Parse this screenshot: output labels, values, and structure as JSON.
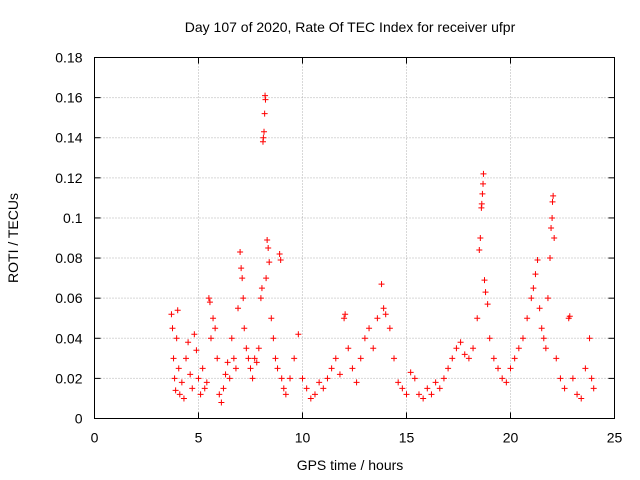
{
  "chart_data": {
    "type": "scatter",
    "title": "Day 107 of 2020, Rate Of TEC Index for receiver ufpr",
    "xlabel": "GPS time / hours",
    "ylabel": "ROTI / TECUs",
    "xlim": [
      0,
      25
    ],
    "ylim": [
      0,
      0.18
    ],
    "xticks": [
      0,
      5,
      10,
      15,
      20,
      25
    ],
    "xtick_labels": [
      "0",
      "5",
      "10",
      "15",
      "20",
      "25"
    ],
    "yticks": [
      0,
      0.02,
      0.04,
      0.06,
      0.08,
      0.1,
      0.12,
      0.14,
      0.16,
      0.18
    ],
    "ytick_labels": [
      "0",
      "0.02",
      "0.04",
      "0.06",
      "0.08",
      "0.1",
      "0.12",
      "0.14",
      "0.16",
      "0.18"
    ],
    "grid": true,
    "marker": "+",
    "marker_color": "#ff0000",
    "series": [
      {
        "name": "ROTI",
        "points": [
          [
            3.7,
            0.052
          ],
          [
            3.75,
            0.045
          ],
          [
            3.8,
            0.03
          ],
          [
            3.85,
            0.02
          ],
          [
            3.9,
            0.014
          ],
          [
            3.95,
            0.04
          ],
          [
            4.0,
            0.054
          ],
          [
            4.05,
            0.025
          ],
          [
            4.1,
            0.012
          ],
          [
            4.2,
            0.018
          ],
          [
            4.3,
            0.01
          ],
          [
            4.4,
            0.03
          ],
          [
            4.5,
            0.038
          ],
          [
            4.6,
            0.022
          ],
          [
            4.7,
            0.015
          ],
          [
            4.8,
            0.042
          ],
          [
            4.9,
            0.034
          ],
          [
            5.0,
            0.02
          ],
          [
            5.1,
            0.012
          ],
          [
            5.2,
            0.025
          ],
          [
            5.3,
            0.015
          ],
          [
            5.4,
            0.018
          ],
          [
            5.5,
            0.06
          ],
          [
            5.55,
            0.058
          ],
          [
            5.6,
            0.04
          ],
          [
            5.7,
            0.05
          ],
          [
            5.8,
            0.045
          ],
          [
            5.9,
            0.03
          ],
          [
            6.0,
            0.012
          ],
          [
            6.1,
            0.008
          ],
          [
            6.2,
            0.015
          ],
          [
            6.3,
            0.022
          ],
          [
            6.4,
            0.028
          ],
          [
            6.5,
            0.02
          ],
          [
            6.6,
            0.04
          ],
          [
            6.7,
            0.03
          ],
          [
            6.8,
            0.025
          ],
          [
            6.9,
            0.055
          ],
          [
            7.0,
            0.083
          ],
          [
            7.05,
            0.075
          ],
          [
            7.1,
            0.07
          ],
          [
            7.15,
            0.06
          ],
          [
            7.2,
            0.045
          ],
          [
            7.3,
            0.035
          ],
          [
            7.4,
            0.03
          ],
          [
            7.5,
            0.025
          ],
          [
            7.6,
            0.02
          ],
          [
            7.7,
            0.03
          ],
          [
            7.8,
            0.028
          ],
          [
            7.9,
            0.035
          ],
          [
            8.0,
            0.06
          ],
          [
            8.05,
            0.065
          ],
          [
            8.1,
            0.138
          ],
          [
            8.12,
            0.14
          ],
          [
            8.15,
            0.143
          ],
          [
            8.18,
            0.152
          ],
          [
            8.2,
            0.161
          ],
          [
            8.22,
            0.159
          ],
          [
            8.25,
            0.07
          ],
          [
            8.3,
            0.089
          ],
          [
            8.35,
            0.085
          ],
          [
            8.4,
            0.078
          ],
          [
            8.5,
            0.05
          ],
          [
            8.6,
            0.04
          ],
          [
            8.7,
            0.03
          ],
          [
            8.8,
            0.025
          ],
          [
            8.9,
            0.082
          ],
          [
            8.95,
            0.079
          ],
          [
            9.0,
            0.02
          ],
          [
            9.1,
            0.015
          ],
          [
            9.2,
            0.012
          ],
          [
            9.4,
            0.02
          ],
          [
            9.6,
            0.03
          ],
          [
            9.8,
            0.042
          ],
          [
            10.0,
            0.02
          ],
          [
            10.2,
            0.015
          ],
          [
            10.4,
            0.01
          ],
          [
            10.6,
            0.012
          ],
          [
            10.8,
            0.018
          ],
          [
            11.0,
            0.015
          ],
          [
            11.2,
            0.02
          ],
          [
            11.4,
            0.025
          ],
          [
            11.6,
            0.03
          ],
          [
            11.8,
            0.022
          ],
          [
            12.0,
            0.05
          ],
          [
            12.05,
            0.052
          ],
          [
            12.2,
            0.035
          ],
          [
            12.4,
            0.025
          ],
          [
            12.6,
            0.018
          ],
          [
            12.8,
            0.03
          ],
          [
            13.0,
            0.04
          ],
          [
            13.2,
            0.045
          ],
          [
            13.4,
            0.035
          ],
          [
            13.6,
            0.05
          ],
          [
            13.8,
            0.067
          ],
          [
            13.9,
            0.055
          ],
          [
            14.0,
            0.052
          ],
          [
            14.2,
            0.045
          ],
          [
            14.4,
            0.03
          ],
          [
            14.6,
            0.018
          ],
          [
            14.8,
            0.015
          ],
          [
            15.0,
            0.012
          ],
          [
            15.2,
            0.023
          ],
          [
            15.4,
            0.02
          ],
          [
            15.6,
            0.012
          ],
          [
            15.8,
            0.01
          ],
          [
            16.0,
            0.015
          ],
          [
            16.2,
            0.012
          ],
          [
            16.4,
            0.018
          ],
          [
            16.6,
            0.015
          ],
          [
            16.8,
            0.02
          ],
          [
            17.0,
            0.025
          ],
          [
            17.2,
            0.03
          ],
          [
            17.4,
            0.035
          ],
          [
            17.6,
            0.038
          ],
          [
            17.8,
            0.032
          ],
          [
            18.0,
            0.03
          ],
          [
            18.2,
            0.035
          ],
          [
            18.4,
            0.05
          ],
          [
            18.5,
            0.084
          ],
          [
            18.55,
            0.09
          ],
          [
            18.6,
            0.105
          ],
          [
            18.62,
            0.107
          ],
          [
            18.65,
            0.112
          ],
          [
            18.68,
            0.117
          ],
          [
            18.7,
            0.122
          ],
          [
            18.75,
            0.069
          ],
          [
            18.8,
            0.063
          ],
          [
            18.9,
            0.057
          ],
          [
            19.0,
            0.04
          ],
          [
            19.2,
            0.03
          ],
          [
            19.4,
            0.025
          ],
          [
            19.6,
            0.02
          ],
          [
            19.8,
            0.018
          ],
          [
            20.0,
            0.025
          ],
          [
            20.2,
            0.03
          ],
          [
            20.4,
            0.035
          ],
          [
            20.6,
            0.04
          ],
          [
            20.8,
            0.05
          ],
          [
            21.0,
            0.06
          ],
          [
            21.1,
            0.065
          ],
          [
            21.2,
            0.072
          ],
          [
            21.3,
            0.079
          ],
          [
            21.4,
            0.055
          ],
          [
            21.5,
            0.045
          ],
          [
            21.6,
            0.04
          ],
          [
            21.7,
            0.035
          ],
          [
            21.8,
            0.06
          ],
          [
            21.9,
            0.08
          ],
          [
            21.95,
            0.095
          ],
          [
            22.0,
            0.1
          ],
          [
            22.02,
            0.108
          ],
          [
            22.05,
            0.111
          ],
          [
            22.1,
            0.09
          ],
          [
            22.2,
            0.03
          ],
          [
            22.4,
            0.02
          ],
          [
            22.6,
            0.015
          ],
          [
            22.8,
            0.05
          ],
          [
            22.85,
            0.051
          ],
          [
            23.0,
            0.02
          ],
          [
            23.2,
            0.012
          ],
          [
            23.4,
            0.01
          ],
          [
            23.6,
            0.025
          ],
          [
            23.8,
            0.04
          ],
          [
            23.9,
            0.02
          ],
          [
            24.0,
            0.015
          ]
        ]
      }
    ]
  }
}
